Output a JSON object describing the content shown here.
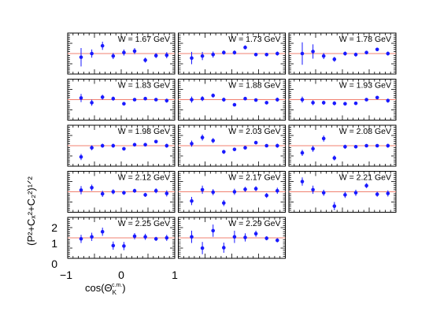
{
  "chart_data": {
    "type": "scatter",
    "xlabel": "cos(Θ",
    "xlabel_sub": "K",
    "xlabel_sup": "c.m.",
    "xlabel_close": ")",
    "ylabel": "(P²+Cₓ²+C₂²)¹ᐟ²",
    "xlim": [
      -1,
      1
    ],
    "ylim": [
      0,
      2
    ],
    "xticks": [
      "−1",
      "0",
      "1"
    ],
    "yticks": [
      "0",
      "1",
      "2"
    ],
    "reference_line": 1,
    "panels": [
      {
        "label": "W = 1.67 GeV",
        "x": [
          -0.75,
          -0.55,
          -0.35,
          -0.15,
          0.05,
          0.25,
          0.45,
          0.65,
          0.85
        ],
        "y": [
          0.82,
          1.0,
          1.38,
          0.88,
          1.05,
          1.12,
          0.68,
          0.9,
          0.92
        ],
        "err": [
          0.45,
          0.2,
          0.2,
          0.15,
          0.15,
          0.15,
          0.12,
          0.12,
          0.15
        ]
      },
      {
        "label": "W = 1.73 GeV",
        "x": [
          -0.75,
          -0.55,
          -0.35,
          -0.15,
          0.05,
          0.25,
          0.45,
          0.65,
          0.85
        ],
        "y": [
          0.78,
          0.88,
          0.95,
          1.05,
          1.05,
          1.3,
          0.95,
          0.95,
          1.0
        ],
        "err": [
          0.3,
          0.2,
          0.15,
          0.1,
          0.1,
          0.1,
          0.08,
          0.08,
          0.1
        ]
      },
      {
        "label": "W = 1.78 GeV",
        "x": [
          -0.75,
          -0.55,
          -0.35,
          -0.15,
          0.05,
          0.25,
          0.45,
          0.65,
          0.85
        ],
        "y": [
          1.0,
          1.1,
          0.88,
          0.72,
          1.0,
          0.95,
          1.05,
          1.2,
          1.0
        ],
        "err": [
          0.55,
          0.35,
          0.15,
          0.12,
          0.1,
          0.1,
          0.08,
          0.08,
          0.1
        ]
      },
      {
        "label": "W = 1.83 GeV",
        "x": [
          -0.75,
          -0.55,
          -0.35,
          -0.15,
          0.05,
          0.25,
          0.45,
          0.65,
          0.85
        ],
        "y": [
          1.08,
          0.85,
          1.12,
          1.05,
          0.8,
          1.0,
          1.05,
          1.0,
          0.95
        ],
        "err": [
          0.2,
          0.15,
          0.12,
          0.1,
          0.08,
          0.08,
          0.08,
          0.08,
          0.1
        ]
      },
      {
        "label": "W = 1.88 GeV",
        "x": [
          -0.75,
          -0.55,
          -0.35,
          -0.15,
          0.05,
          0.25,
          0.45,
          0.65,
          0.85
        ],
        "y": [
          1.0,
          1.05,
          1.2,
          1.0,
          0.75,
          1.05,
          0.98,
          0.85,
          1.0
        ],
        "err": [
          0.15,
          0.12,
          0.1,
          0.1,
          0.08,
          0.08,
          0.08,
          0.08,
          0.1
        ]
      },
      {
        "label": "W = 1.93 GeV",
        "x": [
          -0.75,
          -0.55,
          -0.35,
          -0.15,
          0.05,
          0.25,
          0.45,
          0.65,
          0.85
        ],
        "y": [
          1.0,
          0.85,
          0.85,
          0.82,
          0.8,
          0.82,
          1.0,
          1.1,
          0.95
        ],
        "err": [
          0.15,
          0.12,
          0.1,
          0.1,
          0.08,
          0.08,
          0.08,
          0.08,
          0.1
        ]
      },
      {
        "label": "W = 1.98 GeV",
        "x": [
          -0.75,
          -0.55,
          -0.35,
          -0.15,
          0.05,
          0.25,
          0.45,
          0.65,
          0.85
        ],
        "y": [
          0.45,
          0.9,
          1.0,
          1.0,
          0.85,
          1.05,
          1.05,
          1.2,
          1.0
        ],
        "err": [
          0.15,
          0.12,
          0.1,
          0.1,
          0.08,
          0.08,
          0.08,
          0.08,
          0.1
        ]
      },
      {
        "label": "W = 2.03 GeV",
        "x": [
          -0.75,
          -0.55,
          -0.35,
          -0.15,
          0.05,
          0.25,
          0.45,
          0.65,
          0.85
        ],
        "y": [
          1.1,
          1.4,
          1.25,
          0.7,
          0.82,
          0.9,
          1.15,
          1.0,
          1.0
        ],
        "err": [
          0.15,
          0.15,
          0.12,
          0.1,
          0.08,
          0.08,
          0.08,
          0.08,
          0.1
        ]
      },
      {
        "label": "W = 2.08 GeV",
        "x": [
          -0.75,
          -0.55,
          -0.35,
          -0.15,
          0.05,
          0.25,
          0.45,
          0.65,
          0.85
        ],
        "y": [
          0.65,
          0.85,
          1.35,
          0.4,
          0.95,
          0.95,
          1.0,
          1.0,
          1.0
        ],
        "err": [
          0.15,
          0.15,
          0.15,
          0.12,
          0.1,
          0.08,
          0.08,
          0.08,
          0.1
        ]
      },
      {
        "label": "W = 2.12 GeV",
        "x": [
          -0.75,
          -0.55,
          -0.35,
          -0.15,
          0.05,
          0.25,
          0.45,
          0.65,
          0.85
        ],
        "y": [
          1.08,
          1.2,
          0.9,
          1.0,
          0.95,
          1.05,
          0.85,
          1.05,
          0.92
        ],
        "err": [
          0.2,
          0.15,
          0.15,
          0.12,
          0.1,
          0.1,
          0.1,
          0.12,
          0.15
        ]
      },
      {
        "label": "W = 2.17 GeV",
        "x": [
          -0.75,
          -0.55,
          -0.35,
          -0.15,
          0.05,
          0.25,
          0.45,
          0.65,
          0.85
        ],
        "y": [
          0.55,
          1.1,
          0.98,
          0.45,
          1.0,
          1.12,
          1.15,
          0.82,
          1.05
        ],
        "err": [
          0.2,
          0.2,
          0.15,
          0.15,
          0.15,
          0.12,
          0.12,
          0.12,
          0.15
        ]
      },
      {
        "label": "W = 2.21 GeV",
        "x": [
          -0.75,
          -0.55,
          -0.35,
          -0.15,
          0.05,
          0.25,
          0.45,
          0.65,
          0.85
        ],
        "y": [
          1.5,
          1.1,
          0.95,
          0.3,
          0.85,
          0.95,
          1.3,
          0.88,
          0.92
        ],
        "err": [
          0.2,
          0.2,
          0.15,
          0.2,
          0.15,
          0.15,
          0.12,
          0.12,
          0.15
        ]
      },
      {
        "label": "W = 2.25 GeV",
        "x": [
          -0.75,
          -0.55,
          -0.35,
          -0.15,
          0.05,
          0.25,
          0.45,
          0.65,
          0.85
        ],
        "y": [
          0.95,
          1.05,
          1.3,
          0.62,
          0.6,
          1.08,
          1.05,
          0.95,
          1.0
        ],
        "err": [
          0.2,
          0.2,
          0.2,
          0.2,
          0.2,
          0.15,
          0.15,
          0.1,
          0.15
        ]
      },
      {
        "label": "W = 2.29 GeV",
        "x": [
          -0.75,
          -0.55,
          -0.35,
          -0.15,
          0.05,
          0.25,
          0.45,
          0.65,
          0.85
        ],
        "y": [
          1.05,
          0.5,
          1.35,
          0.52,
          1.05,
          1.02,
          1.2,
          0.98,
          0.88
        ],
        "err": [
          0.3,
          0.3,
          0.3,
          0.25,
          0.3,
          0.2,
          0.15,
          0.1,
          0.1
        ]
      }
    ]
  }
}
